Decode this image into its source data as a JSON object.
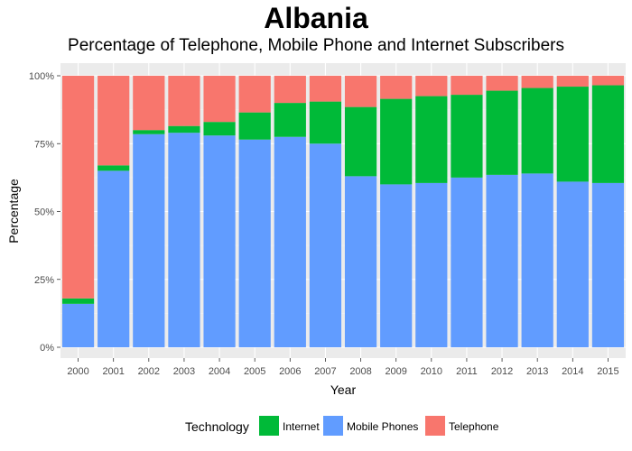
{
  "chart_data": {
    "type": "bar",
    "stacked": true,
    "title": "Albania",
    "subtitle": "Percentage of Telephone, Mobile Phone and Internet Subscribers",
    "xlabel": "Year",
    "ylabel": "Percentage",
    "ylim": [
      0,
      100
    ],
    "y_ticks": [
      "0%",
      "25%",
      "50%",
      "75%",
      "100%"
    ],
    "categories": [
      "2000",
      "2001",
      "2002",
      "2003",
      "2004",
      "2005",
      "2006",
      "2007",
      "2008",
      "2009",
      "2010",
      "2011",
      "2012",
      "2013",
      "2014",
      "2015"
    ],
    "series": [
      {
        "name": "Mobile Phones",
        "color": "#619CFF",
        "values": [
          16,
          65,
          78.5,
          79,
          78,
          76.5,
          77.5,
          75,
          63,
          60,
          60.5,
          62.5,
          63.5,
          64,
          61,
          60.5
        ]
      },
      {
        "name": "Internet",
        "color": "#00BA38",
        "values": [
          2,
          2,
          1.5,
          2.5,
          5,
          10,
          12.5,
          15.5,
          25.5,
          31.5,
          32,
          30.5,
          31,
          31.5,
          35,
          36
        ]
      },
      {
        "name": "Telephone",
        "color": "#F8766D",
        "values": [
          82,
          33,
          20,
          18.5,
          17,
          13.5,
          10,
          9.5,
          11.5,
          8.5,
          7.5,
          7,
          5.5,
          4.5,
          4,
          3.5
        ]
      }
    ],
    "grid": true,
    "legend": {
      "title": "Technology",
      "position": "bottom",
      "items": [
        {
          "label": "Internet",
          "color": "#00BA38"
        },
        {
          "label": "Mobile Phones",
          "color": "#619CFF"
        },
        {
          "label": "Telephone",
          "color": "#F8766D"
        }
      ]
    }
  }
}
